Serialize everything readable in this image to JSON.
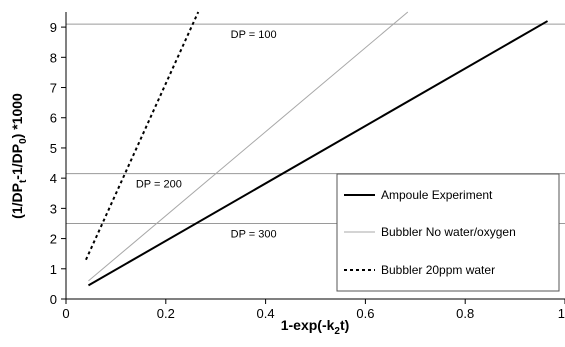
{
  "chart_data": {
    "type": "line",
    "xlabel": "1-exp(-k",
    "xlabel_sub": "2",
    "xlabel_end": "t)",
    "ylabel_parts": [
      {
        "t": "(1/DP",
        "sub": false
      },
      {
        "t": "t",
        "sub": true
      },
      {
        "t": "-1/DP",
        "sub": false
      },
      {
        "t": "0",
        "sub": true
      },
      {
        "t": ") *1000",
        "sub": false
      }
    ],
    "xlim": [
      0,
      1
    ],
    "ylim": [
      0,
      9.5
    ],
    "x_ticks": [
      0,
      0.2,
      0.4,
      0.6,
      0.8,
      1
    ],
    "x_tick_labels": [
      "0",
      "0.2",
      "0.4",
      "0.6",
      "0.8",
      "1"
    ],
    "y_ticks": [
      0,
      1,
      2,
      3,
      4,
      5,
      6,
      7,
      8,
      9
    ],
    "y_tick_labels": [
      "0",
      "1",
      "2",
      "3",
      "4",
      "5",
      "6",
      "7",
      "8",
      "9"
    ],
    "reference_lines": [
      {
        "y": 9.1,
        "label": "DP = 100",
        "label_x": 0.33
      },
      {
        "y": 4.15,
        "label": "DP = 200",
        "label_x": 0.14
      },
      {
        "y": 2.5,
        "label": "DP = 300",
        "label_x": 0.33
      }
    ],
    "series": [
      {
        "name": "Ampoule Experiment",
        "style": "solid",
        "color": "#000000",
        "width": 2,
        "x": [
          0.045,
          0.965
        ],
        "y": [
          0.45,
          9.2
        ]
      },
      {
        "name": "Bubbler No water/oxygen",
        "style": "solid",
        "color": "#a8a8a8",
        "width": 1,
        "x": [
          0.045,
          0.685
        ],
        "y": [
          0.6,
          9.5
        ]
      },
      {
        "name": "Bubbler 20ppm water",
        "style": "dashed",
        "color": "#000000",
        "width": 2,
        "x": [
          0.04,
          0.265
        ],
        "y": [
          1.3,
          9.5
        ]
      }
    ],
    "legend_position": "bottom-right"
  }
}
